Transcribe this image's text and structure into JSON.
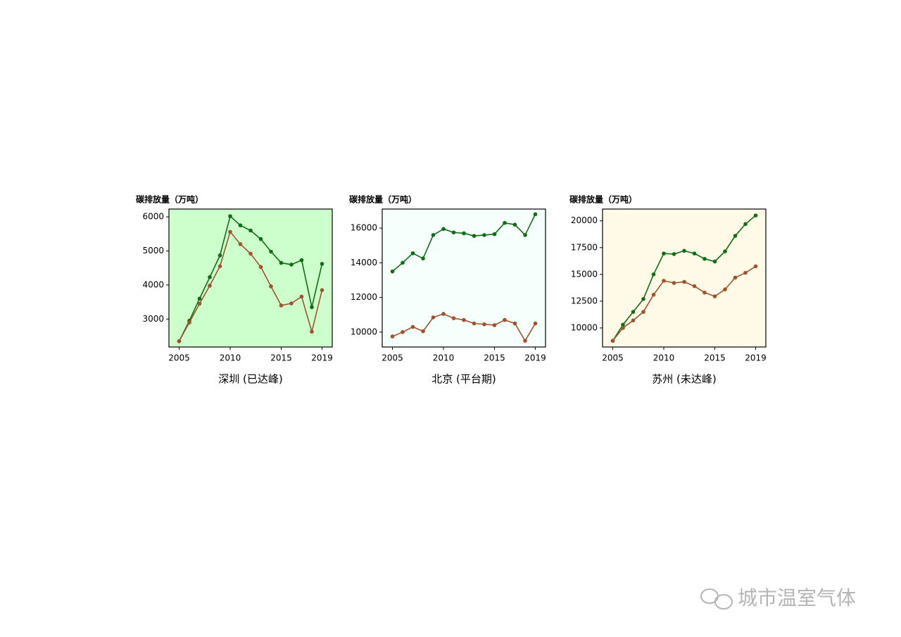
{
  "chart_data": [
    {
      "type": "line",
      "title": "深圳 (已达峰)",
      "ylabel": "碳排放量（万吨）",
      "background": "#ccffcc",
      "x": [
        2005,
        2006,
        2007,
        2008,
        2009,
        2010,
        2011,
        2012,
        2013,
        2014,
        2015,
        2016,
        2017,
        2018,
        2019
      ],
      "xlim": [
        2004,
        2020
      ],
      "xticks": [
        2005,
        2010,
        2015,
        2019
      ],
      "ylim": [
        2180,
        6230
      ],
      "yticks": [
        3000,
        4000,
        5000,
        6000
      ],
      "series": [
        {
          "color": "#0f6e14",
          "values": [
            2350,
            2950,
            3600,
            4230,
            4870,
            6020,
            5750,
            5600,
            5350,
            4980,
            4650,
            4600,
            4730,
            3350,
            4620
          ]
        },
        {
          "color": "#a0522d",
          "values": [
            2350,
            2900,
            3450,
            3980,
            4550,
            5560,
            5200,
            4920,
            4530,
            3960,
            3400,
            3460,
            3660,
            2630,
            3850
          ]
        }
      ]
    },
    {
      "type": "line",
      "title": "北京 (平台期)",
      "ylabel": "碳排放量（万吨）",
      "background": "#f5fffc",
      "x": [
        2005,
        2006,
        2007,
        2008,
        2009,
        2010,
        2011,
        2012,
        2013,
        2014,
        2015,
        2016,
        2017,
        2018,
        2019
      ],
      "xlim": [
        2004,
        2020
      ],
      "xticks": [
        2005,
        2010,
        2015,
        2019
      ],
      "ylim": [
        9140,
        17100
      ],
      "yticks": [
        10000,
        12000,
        14000,
        16000
      ],
      "series": [
        {
          "color": "#0f6e14",
          "values": [
            13500,
            14000,
            14550,
            14250,
            15600,
            15950,
            15750,
            15700,
            15550,
            15600,
            15650,
            16300,
            16200,
            15600,
            16800
          ]
        },
        {
          "color": "#a0522d",
          "values": [
            9750,
            10000,
            10300,
            10050,
            10850,
            11050,
            10800,
            10700,
            10500,
            10450,
            10400,
            10700,
            10500,
            9500,
            10500
          ]
        }
      ]
    },
    {
      "type": "line",
      "title": "苏州 (未达峰)",
      "ylabel": "碳排放量（万吨）",
      "background": "#fffbe6",
      "x": [
        2005,
        2006,
        2007,
        2008,
        2009,
        2010,
        2011,
        2012,
        2013,
        2014,
        2015,
        2016,
        2017,
        2018,
        2019
      ],
      "xlim": [
        2004,
        2020
      ],
      "xticks": [
        2005,
        2010,
        2015,
        2019
      ],
      "ylim": [
        8220,
        21100
      ],
      "yticks": [
        10000,
        12500,
        15000,
        17500,
        20000
      ],
      "series": [
        {
          "color": "#0f6e14",
          "values": [
            8800,
            10300,
            11500,
            12700,
            15000,
            16950,
            16900,
            17200,
            16950,
            16450,
            16200,
            17150,
            18600,
            19700,
            20500
          ]
        },
        {
          "color": "#a0522d",
          "values": [
            8800,
            10000,
            10700,
            11500,
            13100,
            14400,
            14200,
            14300,
            13900,
            13300,
            12950,
            13600,
            14700,
            15150,
            15750
          ]
        }
      ]
    }
  ],
  "watermark": "城市温室气体"
}
